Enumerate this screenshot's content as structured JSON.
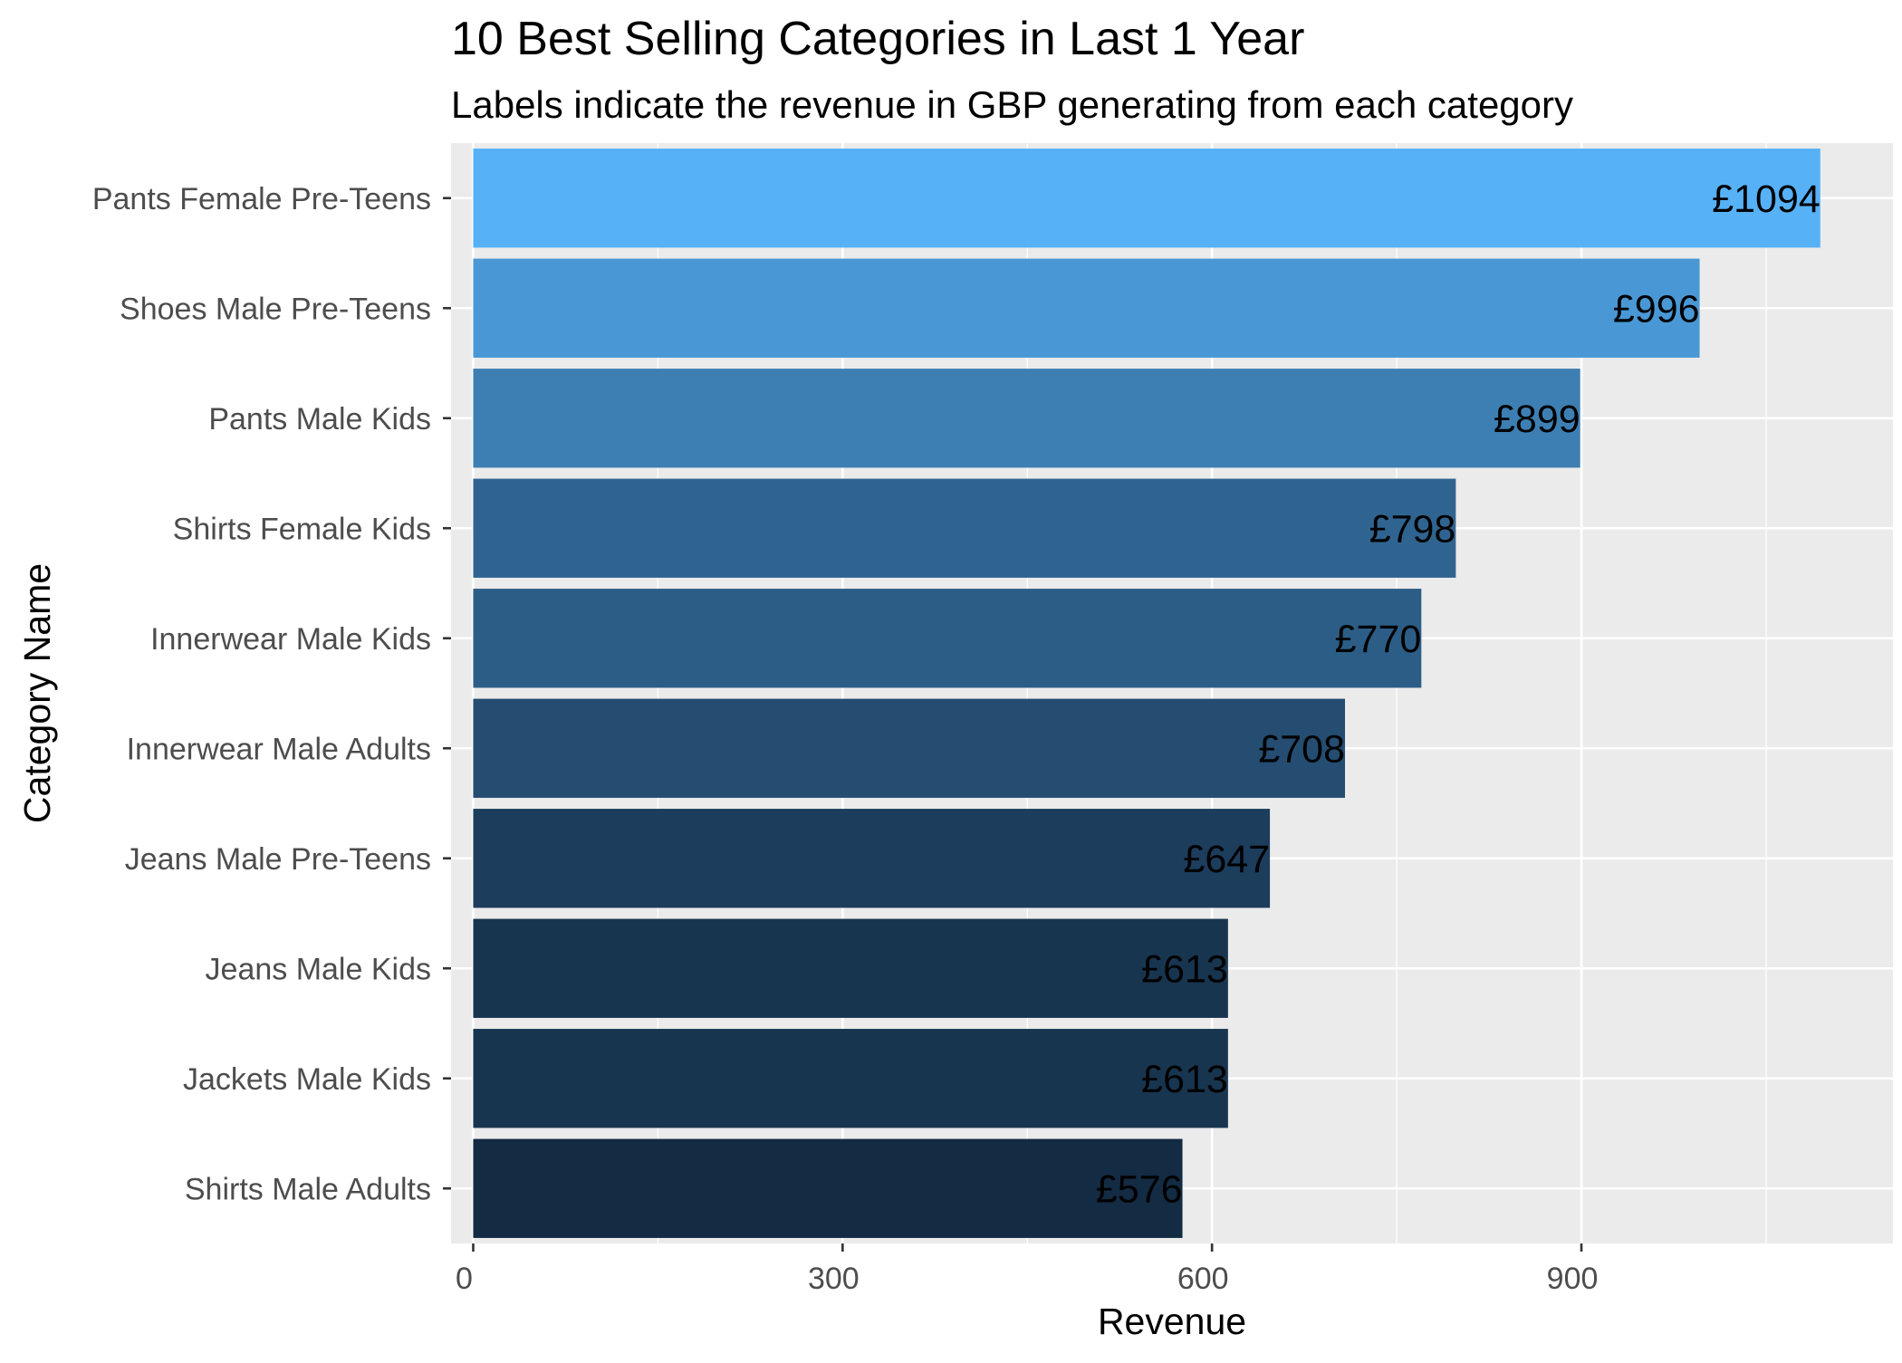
{
  "chart_data": {
    "type": "bar",
    "orientation": "horizontal",
    "title": "10 Best Selling Categories in Last 1 Year",
    "subtitle": "Labels indicate the revenue in GBP generating from each category",
    "xlabel": "Revenue",
    "ylabel": "Category Name",
    "xlim": [
      -18,
      1153
    ],
    "x_ticks": [
      0,
      300,
      600,
      900
    ],
    "grid": true,
    "legend": "none",
    "categories": [
      "Pants Female Pre-Teens",
      "Shoes Male Pre-Teens",
      "Pants Male Kids",
      "Shirts Female Kids",
      "Innerwear Male Kids",
      "Innerwear Male Adults",
      "Jeans Male Pre-Teens",
      "Jeans Male Kids",
      "Jackets Male Kids",
      "Shirts Male Adults"
    ],
    "values": [
      1094,
      996,
      899,
      798,
      770,
      708,
      647,
      613,
      613,
      576
    ],
    "labels": [
      "£1094",
      "£996",
      "£899",
      "£798",
      "£770",
      "£708",
      "£647",
      "£613",
      "£613",
      "£576"
    ],
    "colors": {
      "panel_background": "#EBEBEB",
      "grid": "#FFFFFF",
      "fill_low": "#132B43",
      "fill_high": "#56B1F7"
    }
  }
}
